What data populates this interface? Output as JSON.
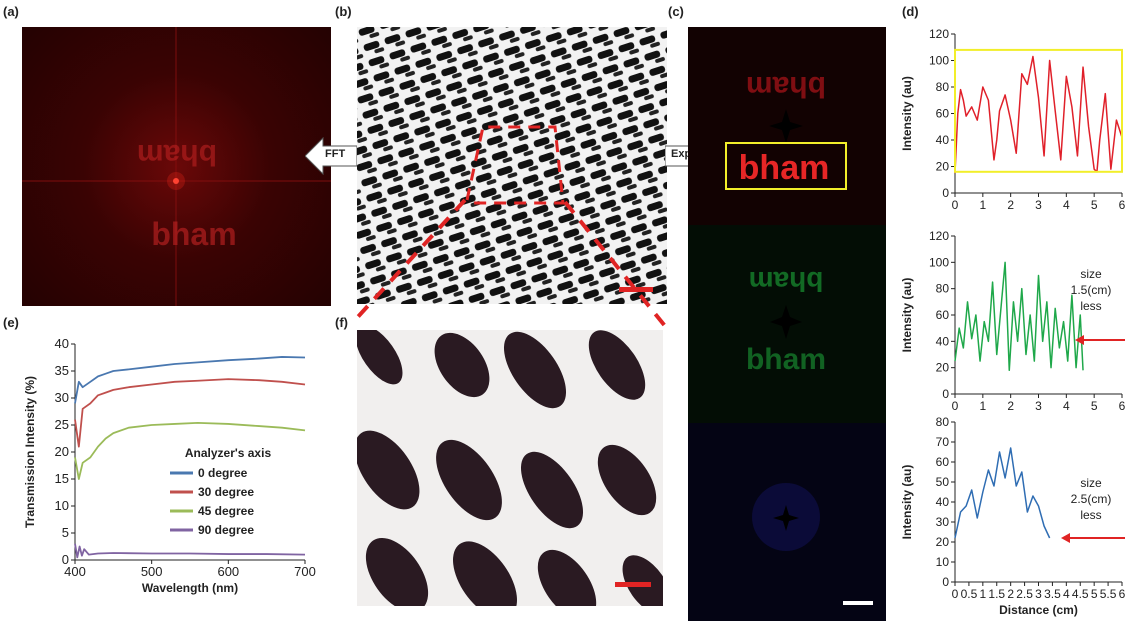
{
  "panel_labels": {
    "a": "(a)",
    "b": "(b)",
    "c": "(c)",
    "d": "(d)",
    "e": "(e)",
    "f": "(f)"
  },
  "arrows": {
    "fft": "FFT",
    "exp": "Exp"
  },
  "hologram_text": {
    "mirrored": "bham",
    "normal": "bham"
  },
  "colors": {
    "red": "#e0202a",
    "green": "#1fa84a",
    "blue": "#2f6db3",
    "yellow": "#f2ee2a",
    "axis": "#222222"
  },
  "chart_data": [
    {
      "type": "line",
      "panel": "e",
      "title": "",
      "xlabel": "Wavelength (nm)",
      "ylabel": "Transmission Intensity (%)",
      "xlim": [
        400,
        700
      ],
      "ylim": [
        0,
        40
      ],
      "xticks": [
        400,
        500,
        600,
        700
      ],
      "yticks": [
        0,
        5,
        10,
        15,
        20,
        25,
        30,
        35,
        40
      ],
      "legend_title": "Analyzer's axis",
      "legend_position": "center-right",
      "series": [
        {
          "name": "0 degree",
          "color": "#4a78b0",
          "x": [
            400,
            405,
            410,
            420,
            430,
            440,
            450,
            470,
            500,
            530,
            560,
            600,
            640,
            670,
            700
          ],
          "values": [
            29,
            33,
            32,
            33,
            34,
            34.5,
            35,
            35.3,
            35.8,
            36.3,
            36.6,
            37,
            37.3,
            37.6,
            37.5
          ]
        },
        {
          "name": "30 degree",
          "color": "#c0504d",
          "x": [
            400,
            405,
            410,
            420,
            430,
            440,
            450,
            470,
            500,
            530,
            560,
            600,
            640,
            670,
            700
          ],
          "values": [
            26,
            21,
            28,
            29,
            30.5,
            31,
            31.5,
            32,
            32.5,
            33,
            33.2,
            33.5,
            33.3,
            33,
            32.5
          ]
        },
        {
          "name": "45 degree",
          "color": "#9bbb59",
          "x": [
            400,
            405,
            410,
            420,
            430,
            440,
            450,
            470,
            500,
            530,
            560,
            600,
            640,
            670,
            700
          ],
          "values": [
            19,
            15,
            18,
            19,
            21,
            22.5,
            23.5,
            24.5,
            25,
            25.2,
            25.4,
            25.2,
            24.8,
            24.5,
            24
          ]
        },
        {
          "name": "90 degree",
          "color": "#8064a2",
          "x": [
            400,
            403,
            406,
            409,
            412,
            418,
            430,
            450,
            500,
            550,
            600,
            650,
            700
          ],
          "values": [
            3,
            0.5,
            2.5,
            0.8,
            2,
            1,
            1.2,
            1.3,
            1.2,
            1.2,
            1.1,
            1.1,
            1.0
          ]
        }
      ]
    },
    {
      "type": "line",
      "panel": "d-top",
      "xlabel": "",
      "ylabel": "Intensity (au)",
      "xlim": [
        0,
        6
      ],
      "ylim": [
        0,
        120
      ],
      "xticks": [
        0,
        1,
        2,
        3,
        4,
        5,
        6
      ],
      "yticks": [
        0,
        20,
        40,
        60,
        80,
        100,
        120
      ],
      "series": [
        {
          "color": "#e0202a",
          "x": [
            0,
            0.1,
            0.2,
            0.3,
            0.4,
            0.6,
            0.8,
            1.0,
            1.2,
            1.4,
            1.5,
            1.6,
            1.8,
            2.0,
            2.2,
            2.4,
            2.6,
            2.8,
            3.0,
            3.2,
            3.4,
            3.6,
            3.8,
            4.0,
            4.2,
            4.4,
            4.6,
            4.8,
            5.0,
            5.1,
            5.2,
            5.4,
            5.6,
            5.8,
            6.0
          ],
          "values": [
            15,
            60,
            78,
            70,
            58,
            65,
            55,
            80,
            70,
            25,
            40,
            62,
            74,
            55,
            30,
            90,
            82,
            103,
            72,
            28,
            100,
            62,
            25,
            88,
            65,
            28,
            95,
            50,
            18,
            16,
            40,
            75,
            18,
            55,
            42
          ]
        }
      ]
    },
    {
      "type": "line",
      "panel": "d-middle",
      "xlabel": "",
      "ylabel": "Intensity (au)",
      "xlim": [
        0,
        6
      ],
      "ylim": [
        0,
        120
      ],
      "xticks": [
        0,
        1,
        2,
        3,
        4,
        5,
        6
      ],
      "yticks": [
        0,
        20,
        40,
        60,
        80,
        100,
        120
      ],
      "annotation": {
        "size": "size",
        "value": "1.5(cm)",
        "less": "less"
      },
      "series": [
        {
          "color": "#1fa84a",
          "x": [
            0,
            0.15,
            0.3,
            0.45,
            0.6,
            0.75,
            0.9,
            1.05,
            1.2,
            1.35,
            1.5,
            1.65,
            1.8,
            1.95,
            2.1,
            2.25,
            2.4,
            2.55,
            2.7,
            2.85,
            3.0,
            3.15,
            3.3,
            3.45,
            3.6,
            3.75,
            3.9,
            4.05,
            4.2,
            4.35,
            4.5,
            4.6
          ],
          "values": [
            25,
            50,
            35,
            70,
            42,
            60,
            25,
            55,
            40,
            85,
            30,
            65,
            100,
            18,
            70,
            40,
            80,
            30,
            60,
            25,
            90,
            40,
            70,
            20,
            65,
            35,
            55,
            25,
            75,
            20,
            60,
            18
          ]
        }
      ]
    },
    {
      "type": "line",
      "panel": "d-bottom",
      "xlabel": "Distance (cm)",
      "ylabel": "Intensity (au)",
      "xlim": [
        0,
        6
      ],
      "ylim": [
        0,
        80
      ],
      "xticks": [
        0,
        0.5,
        1,
        1.5,
        2,
        2.5,
        3,
        3.5,
        4,
        4.5,
        5,
        5.5,
        6
      ],
      "yticks": [
        0,
        10,
        20,
        30,
        40,
        50,
        60,
        70,
        80
      ],
      "annotation": {
        "size": "size",
        "value": "2.5(cm)",
        "less": "less"
      },
      "series": [
        {
          "color": "#2f6db3",
          "x": [
            0,
            0.2,
            0.4,
            0.6,
            0.8,
            1.0,
            1.2,
            1.4,
            1.6,
            1.8,
            2.0,
            2.2,
            2.4,
            2.6,
            2.8,
            3.0,
            3.2,
            3.4
          ],
          "values": [
            22,
            35,
            38,
            46,
            32,
            45,
            56,
            48,
            65,
            52,
            67,
            48,
            55,
            35,
            43,
            38,
            28,
            22
          ]
        }
      ]
    }
  ]
}
